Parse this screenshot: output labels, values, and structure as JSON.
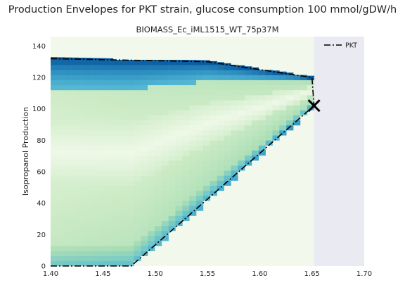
{
  "figure_title": "Production Envelopes for PKT strain, glucose consumption 100 mmol/gDW/h",
  "chart_data": {
    "type": "heatmap",
    "title": "BIOMASS_Ec_iML1515_WT_75p37M",
    "xlabel": "",
    "ylabel": "Isopropanol Production",
    "xlim": [
      1.4,
      1.7
    ],
    "ylim": [
      0,
      146
    ],
    "xticks": [
      "1.40",
      "1.45",
      "1.50",
      "1.55",
      "1.60",
      "1.65",
      "1.70"
    ],
    "yticks": [
      "0",
      "20",
      "40",
      "60",
      "80",
      "100",
      "120",
      "140"
    ],
    "grid": false,
    "legend_position": "top-right",
    "colors": {
      "plot_background": "#eaeaf2",
      "envelope_line": "#000000",
      "colormap_low": "#f7fcf0",
      "colormap_mid": "#a8ddb5",
      "colormap_high": "#08589e"
    },
    "series": [
      {
        "name": "PKT",
        "style": "dash-dot",
        "upper": {
          "x": [
            1.4,
            1.55,
            1.65,
            1.652
          ],
          "y": [
            132,
            130,
            120,
            102
          ]
        },
        "lower": {
          "x": [
            1.4,
            1.477,
            1.652
          ],
          "y": [
            0,
            0,
            102
          ]
        }
      }
    ],
    "marker": {
      "shape": "x",
      "x": 1.652,
      "y": 102
    }
  }
}
